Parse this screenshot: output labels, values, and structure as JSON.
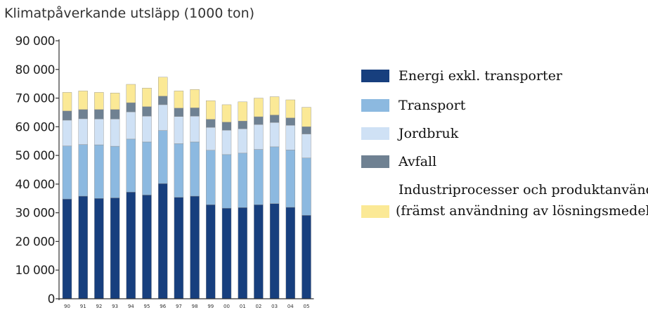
{
  "chart_data": {
    "type": "bar",
    "stacked": true,
    "title": "Klimatpåverkande utsläpp (1000 ton)",
    "xlabel": "",
    "ylabel": "",
    "ylim": [
      0,
      90000
    ],
    "yticks": [
      0,
      10000,
      20000,
      30000,
      40000,
      50000,
      60000,
      70000,
      80000,
      90000
    ],
    "ytick_labels": [
      "0",
      "10 000",
      "20 000",
      "30 000",
      "40 000",
      "50 000",
      "60 000",
      "70 000",
      "80 000",
      "90 000"
    ],
    "categories": [
      "90",
      "91",
      "92",
      "93",
      "94",
      "95",
      "96",
      "97",
      "98",
      "99",
      "00",
      "01",
      "02",
      "03",
      "04",
      "05"
    ],
    "series": [
      {
        "name": "Energi exkl. transporter",
        "color": "#173f7e",
        "values": [
          34800,
          35800,
          35000,
          35200,
          37200,
          36200,
          40200,
          35400,
          35800,
          32800,
          31600,
          31800,
          32800,
          33200,
          31900,
          29100
        ]
      },
      {
        "name": "Transport",
        "color": "#8cb9e0",
        "values": [
          18500,
          18000,
          18700,
          18000,
          18500,
          18500,
          18500,
          18700,
          18900,
          19000,
          18700,
          19000,
          19300,
          19800,
          20000,
          20000
        ]
      },
      {
        "name": "Jordbruk",
        "color": "#cfe1f5",
        "values": [
          9000,
          9000,
          9000,
          9500,
          9500,
          9000,
          9000,
          9500,
          9000,
          8000,
          8500,
          8500,
          8700,
          8500,
          8600,
          8400
        ]
      },
      {
        "name": "Avfall",
        "color": "#6f8192",
        "values": [
          3200,
          3200,
          3300,
          3300,
          3200,
          3300,
          3000,
          2900,
          2900,
          2800,
          2800,
          2700,
          2700,
          2600,
          2600,
          2500
        ]
      },
      {
        "name": "Industriprocesser och produktanvändning",
        "name_line2": "(främst användning av lösningsmedel)",
        "color": "#fbe996",
        "values": [
          6500,
          6500,
          6000,
          5800,
          6400,
          6500,
          6600,
          6000,
          6400,
          6500,
          6100,
          6700,
          6500,
          6400,
          6300,
          6800
        ]
      }
    ],
    "legend_position": "right",
    "grid": false
  }
}
